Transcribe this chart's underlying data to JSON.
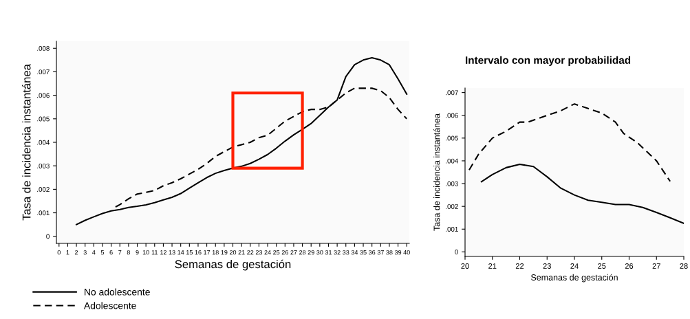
{
  "chart_data": [
    {
      "type": "line",
      "xlabel": "Semanas de gestación",
      "ylabel": "Tasa de incidencia instantánea",
      "legend": "bottom left",
      "grid": false,
      "marker": "none",
      "xlim": [
        -0.3,
        40.3
      ],
      "xticks": [
        0,
        1,
        2,
        3,
        4,
        5,
        6,
        7,
        8,
        9,
        10,
        11,
        12,
        13,
        14,
        15,
        16,
        17,
        18,
        19,
        20,
        21,
        22,
        23,
        24,
        25,
        26,
        27,
        28,
        29,
        30,
        31,
        32,
        33,
        34,
        35,
        36,
        37,
        38,
        39,
        40
      ],
      "ylim": [
        -0.0003,
        0.0083
      ],
      "yticks": [
        0,
        {
          "value": 0.001,
          "label": ".001"
        },
        {
          "value": 0.002,
          "label": ".002"
        },
        {
          "value": 0.003,
          "label": ".003"
        },
        {
          "value": 0.004,
          "label": ".004"
        },
        {
          "value": 0.005,
          "label": ".005"
        },
        {
          "value": 0.006,
          "label": ".006"
        },
        {
          "value": 0.007,
          "label": ".007"
        },
        {
          "value": 0.008,
          "label": ".008"
        }
      ],
      "series": [
        {
          "name": "No adolescente",
          "color": "#000000",
          "line_style": "solid",
          "x": [
            2,
            3,
            4,
            5,
            6,
            7,
            8,
            9,
            10,
            11,
            12,
            13,
            14,
            15,
            16,
            17,
            18,
            19,
            20,
            21,
            22,
            23,
            24,
            25,
            26,
            27,
            28,
            29,
            30,
            31,
            32,
            32.5,
            33,
            34,
            35,
            36,
            37,
            38,
            39,
            40
          ],
          "values": [
            0.0005,
            0.00068,
            0.00083,
            0.00097,
            0.00108,
            0.00114,
            0.00123,
            0.00128,
            0.00134,
            0.00143,
            0.00155,
            0.00166,
            0.00182,
            0.00205,
            0.00228,
            0.0025,
            0.00268,
            0.0028,
            0.0029,
            0.00298,
            0.0031,
            0.00328,
            0.00348,
            0.00375,
            0.00405,
            0.00432,
            0.00455,
            0.0048,
            0.00515,
            0.0055,
            0.0058,
            0.0063,
            0.0068,
            0.0073,
            0.0075,
            0.0076,
            0.0075,
            0.0073,
            0.0067,
            0.00605
          ]
        },
        {
          "name": "Adolescente",
          "color": "#000000",
          "line_style": "dashed",
          "x": [
            6.5,
            7,
            8,
            9,
            10,
            11,
            12,
            13,
            14,
            15,
            16,
            17,
            18,
            19,
            20,
            21,
            22,
            23,
            24,
            25,
            26,
            27,
            28,
            29,
            30,
            31,
            32,
            33,
            34,
            35,
            36,
            37,
            38,
            39,
            40
          ],
          "values": [
            0.00125,
            0.00135,
            0.0016,
            0.0018,
            0.00187,
            0.00195,
            0.00215,
            0.00228,
            0.00245,
            0.00265,
            0.00285,
            0.0031,
            0.0034,
            0.0036,
            0.0038,
            0.0039,
            0.004,
            0.0042,
            0.0043,
            0.0046,
            0.0049,
            0.0051,
            0.0053,
            0.0054,
            0.0054,
            0.0055,
            0.0058,
            0.0061,
            0.0063,
            0.0063,
            0.0063,
            0.0062,
            0.0059,
            0.0054,
            0.005
          ]
        }
      ]
    },
    {
      "type": "line",
      "title": "Intervalo con mayor probabilidad",
      "xlabel": "Semanas de gestación",
      "ylabel": "Tasa de incidencia instantánea",
      "grid": false,
      "marker": "none",
      "xlim": [
        20,
        28
      ],
      "xticks": [
        20,
        21,
        22,
        23,
        24,
        25,
        26,
        27,
        28
      ],
      "ylim": [
        -0.0002,
        0.0072
      ],
      "yticks": [
        0,
        {
          "value": 0.001,
          "label": ".001"
        },
        {
          "value": 0.002,
          "label": ".002"
        },
        {
          "value": 0.003,
          "label": ".003"
        },
        {
          "value": 0.004,
          "label": ".004"
        },
        {
          "value": 0.005,
          "label": ".005"
        },
        {
          "value": 0.006,
          "label": ".006"
        },
        {
          "value": 0.007,
          "label": ".007"
        }
      ],
      "series": [
        {
          "color": "#000000",
          "line_style": "solid",
          "x": [
            20.6,
            21,
            21.5,
            22,
            22.5,
            23,
            23.5,
            24,
            24.5,
            25,
            25.5,
            26,
            26.5,
            27,
            27.5,
            28
          ],
          "values": [
            0.00308,
            0.0034,
            0.0037,
            0.00385,
            0.00375,
            0.0033,
            0.0028,
            0.0025,
            0.00227,
            0.00218,
            0.00208,
            0.00208,
            0.00195,
            0.00173,
            0.0015,
            0.00125
          ]
        },
        {
          "color": "#000000",
          "line_style": "dashed",
          "x": [
            20.15,
            20.5,
            21,
            21.5,
            22,
            22.3,
            23,
            23.5,
            24,
            24.5,
            25,
            25.5,
            25.8,
            26.3,
            27,
            27.5
          ],
          "values": [
            0.0036,
            0.0043,
            0.005,
            0.0053,
            0.0057,
            0.0057,
            0.006,
            0.0062,
            0.0065,
            0.0063,
            0.0061,
            0.0057,
            0.0052,
            0.0048,
            0.004,
            0.0031
          ]
        }
      ]
    }
  ]
}
